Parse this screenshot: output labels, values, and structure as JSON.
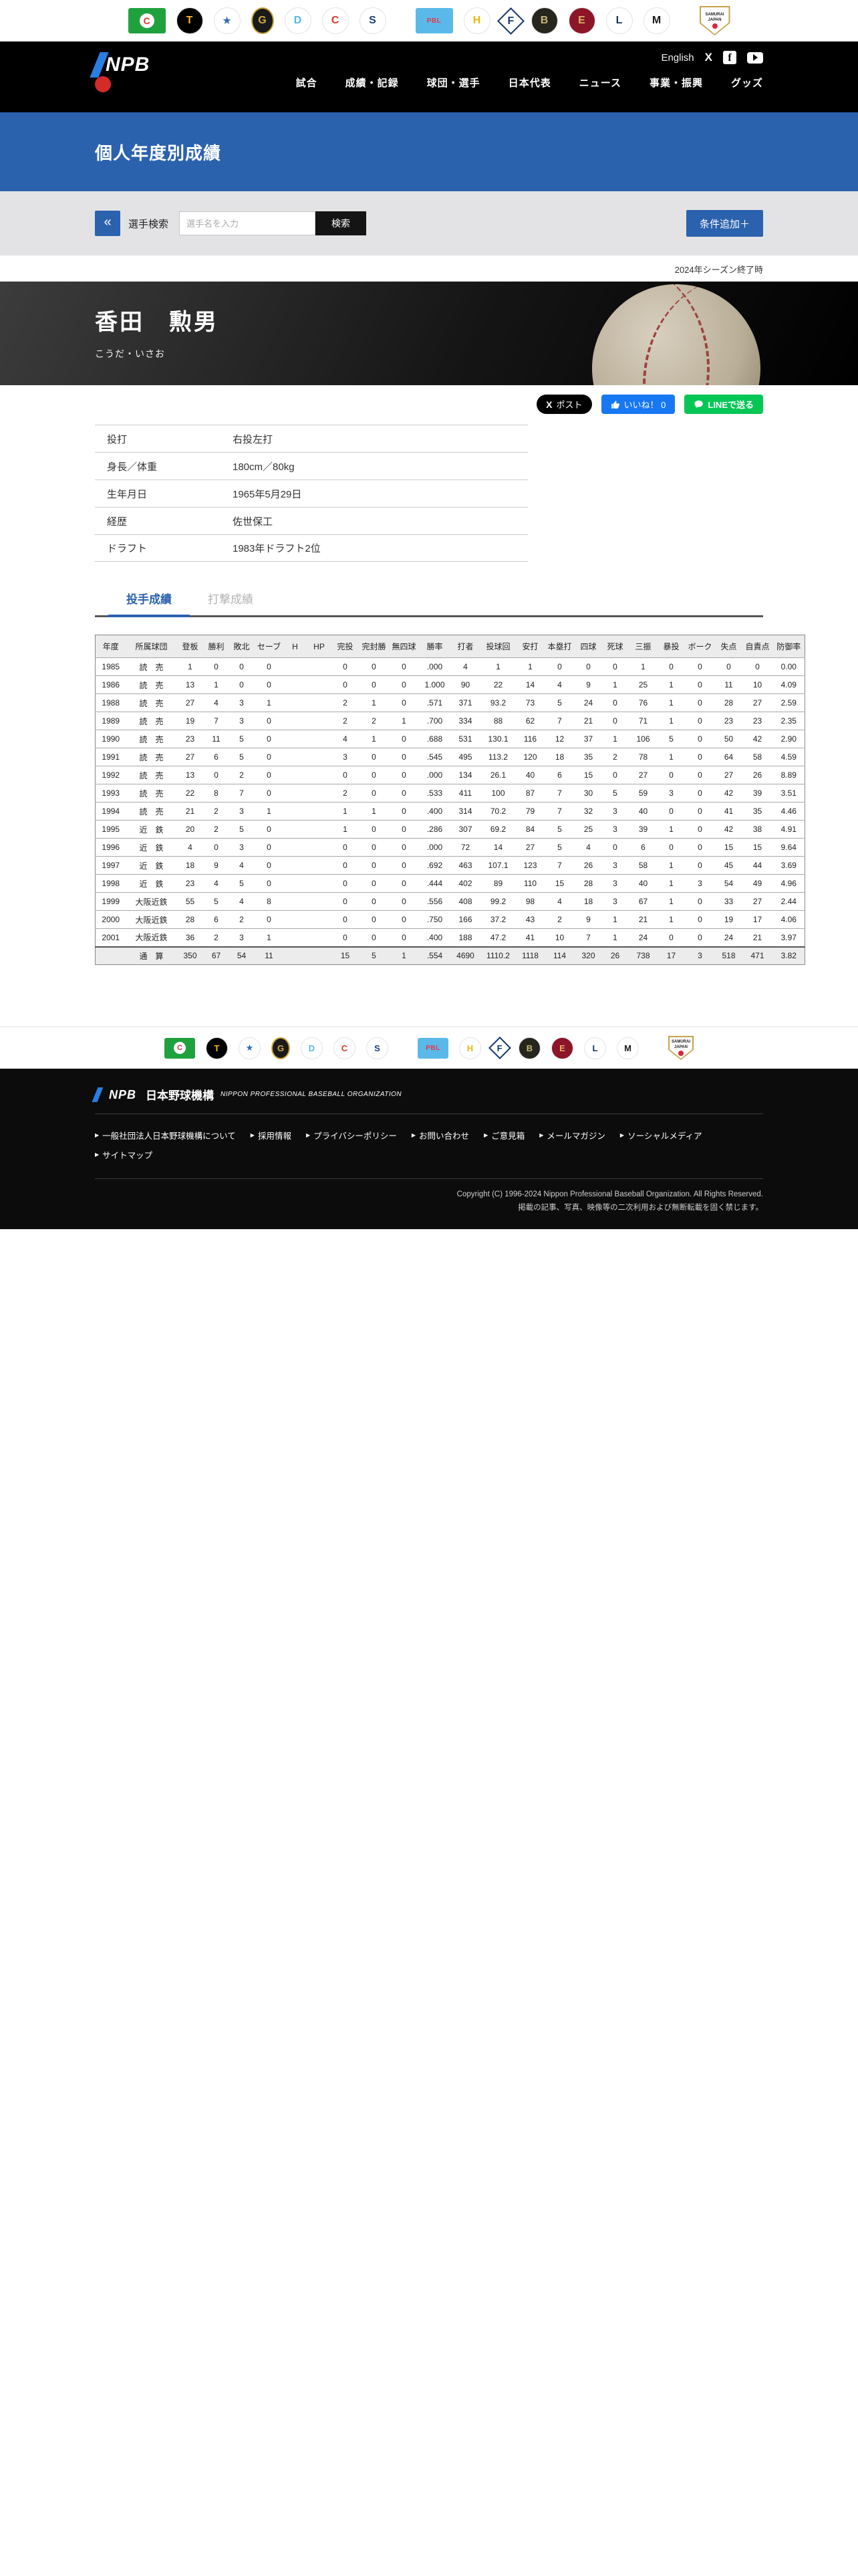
{
  "accent": "#2b62ae",
  "team_logos": [
    {
      "id": "central-league",
      "abbr": "C",
      "bg": "#1fa23e",
      "fg": "#e0342c",
      "shape": "rect"
    },
    {
      "id": "tigers",
      "abbr": "T",
      "bg": "#000000",
      "fg": "#f7b52c",
      "shape": "circle"
    },
    {
      "id": "baystars",
      "abbr": "★",
      "bg": "#ffffff",
      "fg": "#2c6bb5",
      "shape": "circle"
    },
    {
      "id": "giants",
      "abbr": "G",
      "bg": "#1a1a1a",
      "fg": "#d4a941",
      "shape": "oval"
    },
    {
      "id": "dragons",
      "abbr": "D",
      "bg": "#ffffff",
      "fg": "#55b8e6",
      "shape": "circle"
    },
    {
      "id": "carp",
      "abbr": "C",
      "bg": "#ffffff",
      "fg": "#e0342c",
      "shape": "circle"
    },
    {
      "id": "swallows",
      "abbr": "S",
      "bg": "#ffffff",
      "fg": "#173f7a",
      "shape": "circle"
    },
    {
      "id": "pacific-league",
      "abbr": "PBL",
      "bg": "#5ab9e8",
      "fg": "#e8374a",
      "shape": "rect",
      "gap": true
    },
    {
      "id": "hawks",
      "abbr": "H",
      "bg": "#ffffff",
      "fg": "#e5b80b",
      "shape": "circle"
    },
    {
      "id": "fighters",
      "abbr": "F",
      "bg": "#ffffff",
      "fg": "#16376e",
      "shape": "diamond"
    },
    {
      "id": "buffaloes",
      "abbr": "B",
      "bg": "#26251e",
      "fg": "#c9b87a",
      "shape": "circle"
    },
    {
      "id": "eagles",
      "abbr": "E",
      "bg": "#8c1528",
      "fg": "#d8b56a",
      "shape": "circle"
    },
    {
      "id": "lions",
      "abbr": "L",
      "bg": "#ffffff",
      "fg": "#16325c",
      "shape": "circle"
    },
    {
      "id": "marines",
      "abbr": "M",
      "bg": "#ffffff",
      "fg": "#1a1a1a",
      "shape": "circle"
    },
    {
      "id": "samurai-japan",
      "abbr": "SAMURAI JAPAN",
      "bg": "#c5a24a",
      "fg": "#1a1a1a",
      "shape": "pentagon",
      "gap": true
    }
  ],
  "nav": {
    "english": "English",
    "items": [
      "試合",
      "成績・記録",
      "球団・選手",
      "日本代表",
      "ニュース",
      "事業・振興",
      "グッズ"
    ]
  },
  "page_header": {
    "title": "個人年度別成績"
  },
  "search": {
    "label": "選手検索",
    "placeholder": "選手名を入力",
    "button": "検索",
    "add_condition": "条件追加＋",
    "back_glyph": "«"
  },
  "season_note": "2024年シーズン終了時",
  "player": {
    "name": "香田　勲男",
    "kana": "こうだ・いさお",
    "info": [
      {
        "label": "投打",
        "value": "右投左打"
      },
      {
        "label": "身長／体重",
        "value": "180cm／80kg"
      },
      {
        "label": "生年月日",
        "value": "1965年5月29日"
      },
      {
        "label": "経歴",
        "value": "佐世保工"
      },
      {
        "label": "ドラフト",
        "value": "1983年ドラフト2位"
      }
    ]
  },
  "share": {
    "post": "ポスト",
    "like": "いいね！ 0",
    "line": "LINEで送る",
    "x_glyph": "X"
  },
  "tabs": [
    {
      "id": "pitching",
      "label": "投手成績",
      "active": true
    },
    {
      "id": "batting",
      "label": "打撃成績",
      "active": false
    }
  ],
  "stats_table": {
    "columns": [
      "年度",
      "所属球団",
      "登板",
      "勝利",
      "敗北",
      "セーブ",
      "H",
      "HP",
      "完投",
      "完封勝",
      "無四球",
      "勝率",
      "打者",
      "投球回",
      "安打",
      "本塁打",
      "四球",
      "死球",
      "三振",
      "暴投",
      "ボーク",
      "失点",
      "自責点",
      "防御率"
    ],
    "rows": [
      [
        "1985",
        "読　売",
        "1",
        "0",
        "0",
        "0",
        "",
        "",
        "0",
        "0",
        "0",
        ".000",
        "4",
        "1",
        "1",
        "0",
        "0",
        "0",
        "1",
        "0",
        "0",
        "0",
        "0",
        "0.00"
      ],
      [
        "1986",
        "読　売",
        "13",
        "1",
        "0",
        "0",
        "",
        "",
        "0",
        "0",
        "0",
        "1.000",
        "90",
        "22",
        "14",
        "4",
        "9",
        "1",
        "25",
        "1",
        "0",
        "11",
        "10",
        "4.09"
      ],
      [
        "1988",
        "読　売",
        "27",
        "4",
        "3",
        "1",
        "",
        "",
        "2",
        "1",
        "0",
        ".571",
        "371",
        "93.2",
        "73",
        "5",
        "24",
        "0",
        "76",
        "1",
        "0",
        "28",
        "27",
        "2.59"
      ],
      [
        "1989",
        "読　売",
        "19",
        "7",
        "3",
        "0",
        "",
        "",
        "2",
        "2",
        "1",
        ".700",
        "334",
        "88",
        "62",
        "7",
        "21",
        "0",
        "71",
        "1",
        "0",
        "23",
        "23",
        "2.35"
      ],
      [
        "1990",
        "読　売",
        "23",
        "11",
        "5",
        "0",
        "",
        "",
        "4",
        "1",
        "0",
        ".688",
        "531",
        "130.1",
        "116",
        "12",
        "37",
        "1",
        "106",
        "5",
        "0",
        "50",
        "42",
        "2.90"
      ],
      [
        "1991",
        "読　売",
        "27",
        "6",
        "5",
        "0",
        "",
        "",
        "3",
        "0",
        "0",
        ".545",
        "495",
        "113.2",
        "120",
        "18",
        "35",
        "2",
        "78",
        "1",
        "0",
        "64",
        "58",
        "4.59"
      ],
      [
        "1992",
        "読　売",
        "13",
        "0",
        "2",
        "0",
        "",
        "",
        "0",
        "0",
        "0",
        ".000",
        "134",
        "26.1",
        "40",
        "6",
        "15",
        "0",
        "27",
        "0",
        "0",
        "27",
        "26",
        "8.89"
      ],
      [
        "1993",
        "読　売",
        "22",
        "8",
        "7",
        "0",
        "",
        "",
        "2",
        "0",
        "0",
        ".533",
        "411",
        "100",
        "87",
        "7",
        "30",
        "5",
        "59",
        "3",
        "0",
        "42",
        "39",
        "3.51"
      ],
      [
        "1994",
        "読　売",
        "21",
        "2",
        "3",
        "1",
        "",
        "",
        "1",
        "1",
        "0",
        ".400",
        "314",
        "70.2",
        "79",
        "7",
        "32",
        "3",
        "40",
        "0",
        "0",
        "41",
        "35",
        "4.46"
      ],
      [
        "1995",
        "近　鉄",
        "20",
        "2",
        "5",
        "0",
        "",
        "",
        "1",
        "0",
        "0",
        ".286",
        "307",
        "69.2",
        "84",
        "5",
        "25",
        "3",
        "39",
        "1",
        "0",
        "42",
        "38",
        "4.91"
      ],
      [
        "1996",
        "近　鉄",
        "4",
        "0",
        "3",
        "0",
        "",
        "",
        "0",
        "0",
        "0",
        ".000",
        "72",
        "14",
        "27",
        "5",
        "4",
        "0",
        "6",
        "0",
        "0",
        "15",
        "15",
        "9.64"
      ],
      [
        "1997",
        "近　鉄",
        "18",
        "9",
        "4",
        "0",
        "",
        "",
        "0",
        "0",
        "0",
        ".692",
        "463",
        "107.1",
        "123",
        "7",
        "26",
        "3",
        "58",
        "1",
        "0",
        "45",
        "44",
        "3.69"
      ],
      [
        "1998",
        "近　鉄",
        "23",
        "4",
        "5",
        "0",
        "",
        "",
        "0",
        "0",
        "0",
        ".444",
        "402",
        "89",
        "110",
        "15",
        "28",
        "3",
        "40",
        "1",
        "3",
        "54",
        "49",
        "4.96"
      ],
      [
        "1999",
        "大阪近鉄",
        "55",
        "5",
        "4",
        "8",
        "",
        "",
        "0",
        "0",
        "0",
        ".556",
        "408",
        "99.2",
        "98",
        "4",
        "18",
        "3",
        "67",
        "1",
        "0",
        "33",
        "27",
        "2.44"
      ],
      [
        "2000",
        "大阪近鉄",
        "28",
        "6",
        "2",
        "0",
        "",
        "",
        "0",
        "0",
        "0",
        ".750",
        "166",
        "37.2",
        "43",
        "2",
        "9",
        "1",
        "21",
        "1",
        "0",
        "19",
        "17",
        "4.06"
      ],
      [
        "2001",
        "大阪近鉄",
        "36",
        "2",
        "3",
        "1",
        "",
        "",
        "0",
        "0",
        "0",
        ".400",
        "188",
        "47.2",
        "41",
        "10",
        "7",
        "1",
        "24",
        "0",
        "0",
        "24",
        "21",
        "3.97"
      ]
    ],
    "total": [
      "",
      "通　算",
      "350",
      "67",
      "54",
      "11",
      "",
      "",
      "15",
      "5",
      "1",
      ".554",
      "4690",
      "1110.2",
      "1118",
      "114",
      "320",
      "26",
      "738",
      "17",
      "3",
      "518",
      "471",
      "3.82"
    ]
  },
  "footer": {
    "org_ja": "日本野球機構",
    "org_en": "NIPPON PROFESSIONAL BASEBALL ORGANIZATION",
    "npb": "NPB",
    "links": [
      "一般社団法人日本野球機構について",
      "採用情報",
      "プライバシーポリシー",
      "お問い合わせ",
      "ご意見箱",
      "メールマガジン",
      "ソーシャルメディア",
      "サイトマップ"
    ],
    "copyright1": "Copyright (C) 1996-2024 Nippon Professional Baseball Organization. All Rights Reserved.",
    "copyright2": "掲載の記事、写真、映像等の二次利用および無断転載を固く禁じます。"
  }
}
